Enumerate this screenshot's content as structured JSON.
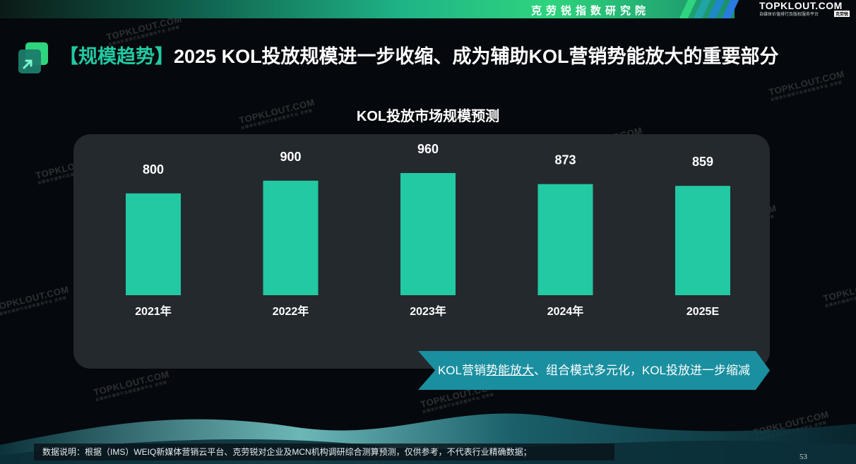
{
  "header": {
    "institute": "克劳锐指数研究院",
    "brand_name": "TOPKLOUT.COM",
    "brand_sub": "自媒体价值排行及版权服务平台",
    "brand_badge": "克劳锐"
  },
  "title": {
    "tag": "【规模趋势】",
    "text": "2025 KOL投放规模进一步收缩、成为辅助KOL营销势能放大的重要部分"
  },
  "chart_data": {
    "type": "bar",
    "title": "KOL投放市场规模预测",
    "categories": [
      "2021年",
      "2022年",
      "2023年",
      "2024年",
      "2025E"
    ],
    "values": [
      800,
      900,
      960,
      873,
      859
    ],
    "bar_color": "#22c9a2",
    "xlabel": "",
    "ylabel": "",
    "grid": false
  },
  "banner": {
    "pre": "KOL营销",
    "underlined": "势能放大",
    "post": "、组合模式多元化，KOL投放进一步缩减"
  },
  "footnote": "数据说明：根据（IMS）WEIQ新媒体营销云平台、克劳锐对企业及MCN机构调研综合测算预测，仅供参考，不代表行业精确数据；",
  "page_number": "53",
  "watermark": {
    "text": "TOPKLOUT.COM",
    "sub": "自媒体价值排行及版权服务平台 克劳锐"
  },
  "colors": {
    "accent": "#22c9a2",
    "panel": "#24292e",
    "banner": "#1a8fa0"
  }
}
